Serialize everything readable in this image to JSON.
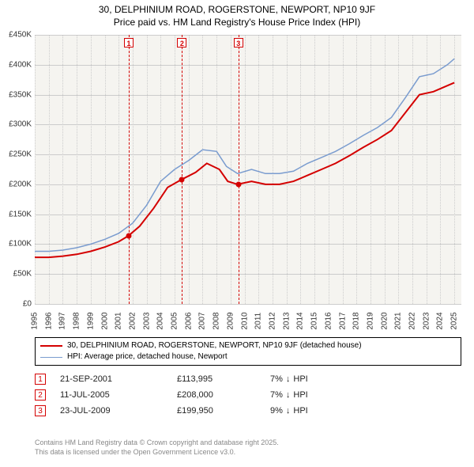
{
  "title_line1": "30, DELPHINIUM ROAD, ROGERSTONE, NEWPORT, NP10 9JF",
  "title_line2": "Price paid vs. HM Land Registry's House Price Index (HPI)",
  "chart": {
    "type": "line",
    "background_color": "#f5f4f0",
    "grid_color": "#cccccc",
    "x_years": [
      1995,
      1996,
      1997,
      1998,
      1999,
      2000,
      2001,
      2002,
      2003,
      2004,
      2005,
      2006,
      2007,
      2008,
      2009,
      2010,
      2011,
      2012,
      2013,
      2014,
      2015,
      2016,
      2017,
      2018,
      2019,
      2020,
      2021,
      2022,
      2023,
      2024,
      2025
    ],
    "xlim": [
      1995,
      2025.5
    ],
    "ylim": [
      0,
      450000
    ],
    "ytick_step": 50000,
    "y_labels": [
      "£0",
      "£50K",
      "£100K",
      "£150K",
      "£200K",
      "£250K",
      "£300K",
      "£350K",
      "£400K",
      "£450K"
    ],
    "series": [
      {
        "name": "price_paid",
        "label": "30, DELPHINIUM ROAD, ROGERSTONE, NEWPORT, NP10 9JF (detached house)",
        "color": "#d40000",
        "line_width": 2,
        "points": [
          [
            1995.0,
            78000
          ],
          [
            1996.0,
            78000
          ],
          [
            1997.0,
            80000
          ],
          [
            1998.0,
            83000
          ],
          [
            1999.0,
            88000
          ],
          [
            2000.0,
            95000
          ],
          [
            2001.0,
            104000
          ],
          [
            2001.7,
            113995
          ],
          [
            2002.5,
            130000
          ],
          [
            2003.5,
            160000
          ],
          [
            2004.5,
            195000
          ],
          [
            2005.5,
            208000
          ],
          [
            2006.5,
            220000
          ],
          [
            2007.3,
            235000
          ],
          [
            2008.2,
            225000
          ],
          [
            2008.8,
            205000
          ],
          [
            2009.5,
            199950
          ],
          [
            2010.5,
            205000
          ],
          [
            2011.5,
            200000
          ],
          [
            2012.5,
            200000
          ],
          [
            2013.5,
            205000
          ],
          [
            2014.5,
            215000
          ],
          [
            2015.5,
            225000
          ],
          [
            2016.5,
            235000
          ],
          [
            2017.5,
            248000
          ],
          [
            2018.5,
            262000
          ],
          [
            2019.5,
            275000
          ],
          [
            2020.5,
            290000
          ],
          [
            2021.5,
            320000
          ],
          [
            2022.5,
            350000
          ],
          [
            2023.5,
            355000
          ],
          [
            2024.5,
            365000
          ],
          [
            2025.0,
            370000
          ]
        ]
      },
      {
        "name": "hpi",
        "label": "HPI: Average price, detached house, Newport",
        "color": "#7a9ccf",
        "line_width": 1.5,
        "points": [
          [
            1995.0,
            88000
          ],
          [
            1996.0,
            88000
          ],
          [
            1997.0,
            90000
          ],
          [
            1998.0,
            94000
          ],
          [
            1999.0,
            100000
          ],
          [
            2000.0,
            108000
          ],
          [
            2001.0,
            118000
          ],
          [
            2002.0,
            135000
          ],
          [
            2003.0,
            165000
          ],
          [
            2004.0,
            205000
          ],
          [
            2005.0,
            225000
          ],
          [
            2006.0,
            240000
          ],
          [
            2007.0,
            258000
          ],
          [
            2008.0,
            255000
          ],
          [
            2008.7,
            230000
          ],
          [
            2009.5,
            218000
          ],
          [
            2010.5,
            225000
          ],
          [
            2011.5,
            218000
          ],
          [
            2012.5,
            218000
          ],
          [
            2013.5,
            222000
          ],
          [
            2014.5,
            235000
          ],
          [
            2015.5,
            245000
          ],
          [
            2016.5,
            255000
          ],
          [
            2017.5,
            268000
          ],
          [
            2018.5,
            282000
          ],
          [
            2019.5,
            295000
          ],
          [
            2020.5,
            312000
          ],
          [
            2021.5,
            345000
          ],
          [
            2022.5,
            380000
          ],
          [
            2023.5,
            385000
          ],
          [
            2024.5,
            400000
          ],
          [
            2025.0,
            410000
          ]
        ]
      }
    ],
    "events": [
      {
        "num": "1",
        "x": 2001.72
      },
      {
        "num": "2",
        "x": 2005.53
      },
      {
        "num": "3",
        "x": 2009.56
      }
    ],
    "event_line_color": "#d40000",
    "marker_radius": 3.5
  },
  "legend_items": [
    {
      "color": "#d40000",
      "width": 2,
      "label": "30, DELPHINIUM ROAD, ROGERSTONE, NEWPORT, NP10 9JF (detached house)"
    },
    {
      "color": "#7a9ccf",
      "width": 1.5,
      "label": "HPI: Average price, detached house, Newport"
    }
  ],
  "transactions": [
    {
      "num": "1",
      "date": "21-SEP-2001",
      "price": "£113,995",
      "delta_pct": "7%",
      "delta_dir": "↓",
      "delta_ref": "HPI"
    },
    {
      "num": "2",
      "date": "11-JUL-2005",
      "price": "£208,000",
      "delta_pct": "7%",
      "delta_dir": "↓",
      "delta_ref": "HPI"
    },
    {
      "num": "3",
      "date": "23-JUL-2009",
      "price": "£199,950",
      "delta_pct": "9%",
      "delta_dir": "↓",
      "delta_ref": "HPI"
    }
  ],
  "footer_line1": "Contains HM Land Registry data © Crown copyright and database right 2025.",
  "footer_line2": "This data is licensed under the Open Government Licence v3.0."
}
